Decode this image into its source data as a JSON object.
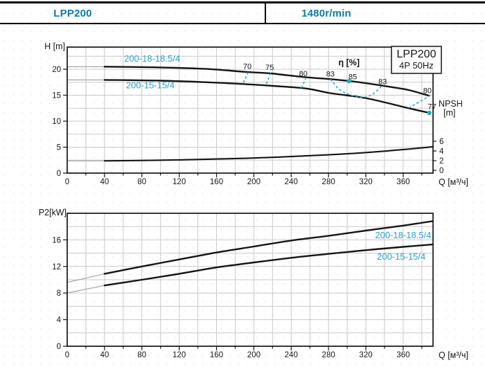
{
  "header": {
    "model": "LPP200",
    "speed": "1480r/min"
  },
  "colors": {
    "header_text": "#0a7ca8",
    "curve_label": "#24a3c8",
    "eta_dash": "#2aa7cb",
    "grid": "#c9c9c9",
    "axis": "#141414",
    "curve": "#141414",
    "ext": "#9e9e9e"
  },
  "chart_data": [
    {
      "type": "line",
      "title": "Head vs flow",
      "badge": [
        "LPP200",
        "4P 50Hz"
      ],
      "xlabel": "Q [м³/ч]",
      "ylabel": "H [m]",
      "xlim": [
        0,
        392
      ],
      "ylim": [
        0,
        24.3
      ],
      "x_grid_step": 20,
      "y_grid_step": 2.5,
      "x_ticks": [
        0,
        40,
        80,
        120,
        160,
        200,
        240,
        280,
        320,
        360
      ],
      "y_ticks": [
        0,
        5,
        10,
        15,
        20
      ],
      "series": [
        {
          "name": "200-18-18.5/4",
          "label_at": [
            91,
            21.9
          ],
          "ext": [
            [
              0,
              20.5
            ],
            [
              40,
              20.5
            ]
          ],
          "points": [
            [
              40,
              20.5
            ],
            [
              100,
              20.35
            ],
            [
              150,
              20.05
            ],
            [
              194,
              19.45
            ],
            [
              218,
              19.2
            ],
            [
              256,
              18.45
            ],
            [
              282,
              18.1
            ],
            [
              303,
              17.72
            ],
            [
              321,
              17.3
            ],
            [
              350,
              16.5
            ],
            [
              366,
              16.0
            ],
            [
              388,
              14.9
            ]
          ]
        },
        {
          "name": "200-15-15/4",
          "label_at": [
            89,
            16.8
          ],
          "ext": [
            [
              0,
              17.95
            ],
            [
              40,
              17.95
            ]
          ],
          "points": [
            [
              40,
              17.95
            ],
            [
              100,
              17.8
            ],
            [
              150,
              17.5
            ],
            [
              190,
              17.15
            ],
            [
              220,
              16.8
            ],
            [
              256,
              16.3
            ],
            [
              282,
              15.4
            ],
            [
              321,
              14.4
            ],
            [
              366,
              12.5
            ],
            [
              388,
              11.6
            ]
          ]
        }
      ],
      "right_axis": {
        "title_lines": [
          "NPSH",
          "[m]"
        ],
        "ticks": [
          0,
          2,
          4,
          6
        ]
      },
      "npsh_series": {
        "ext": [
          [
            0,
            1.95
          ],
          [
            40,
            1.95
          ]
        ],
        "points": [
          [
            40,
            1.95
          ],
          [
            120,
            2.15
          ],
          [
            200,
            2.55
          ],
          [
            280,
            3.2
          ],
          [
            340,
            3.95
          ],
          [
            391,
            4.85
          ]
        ]
      },
      "eta": {
        "title": "η [%]",
        "title_at": [
          302,
          20.75
        ],
        "markers": [
          {
            "label": "70",
            "label_at": [
              193,
              20.1
            ],
            "dash": [
              [
                194,
                19.4
              ],
              [
                188,
                17.2
              ]
            ]
          },
          {
            "label": "75",
            "label_at": [
              217,
              19.85
            ],
            "dash": [
              [
                218,
                19.25
              ],
              [
                213,
                17.0
              ]
            ]
          },
          {
            "label": "80",
            "label_at": [
              253,
              18.7
            ],
            "dash": [
              [
                256,
                18.4
              ],
              [
                251,
                16.35
              ]
            ]
          },
          {
            "label": "83",
            "label_at": [
              282,
              18.6
            ],
            "dash": [
              [
                282,
                18.1
              ],
              [
                291,
                16.2
              ],
              [
                302,
                15.15
              ],
              [
                315,
                14.55
              ],
              [
                327,
                15.15
              ],
              [
                337,
                16.8
              ]
            ]
          },
          {
            "label": "85",
            "label_at": [
              306,
              18.1
            ],
            "dot": [
              302,
              17.7
            ]
          },
          {
            "label": "83",
            "label_at": [
              338,
              17.15
            ]
          },
          {
            "label": "80",
            "label_at": [
              386,
              15.4
            ],
            "dash": [
              [
                366,
                12.55
              ],
              [
                389,
                14.95
              ]
            ]
          },
          {
            "label": "77",
            "label_at": [
              391,
              12.35
            ],
            "dot": [
              388,
              11.6
            ]
          }
        ]
      }
    },
    {
      "type": "line",
      "title": "Power vs flow",
      "xlabel": "Q [м³/ч]",
      "ylabel": "P2[kW]",
      "xlim": [
        0,
        392
      ],
      "ylim": [
        0,
        20
      ],
      "x_grid_step": 20,
      "y_grid_step": 2,
      "x_ticks": [
        0,
        40,
        80,
        120,
        160,
        200,
        240,
        280,
        320,
        360
      ],
      "y_ticks": [
        0,
        4,
        8,
        12,
        16
      ],
      "series": [
        {
          "name": "200-18-18.5/4",
          "label_at": [
            360,
            16.6
          ],
          "ext": [
            [
              0,
              9.6
            ],
            [
              40,
              10.9
            ]
          ],
          "points": [
            [
              40,
              10.9
            ],
            [
              80,
              12.0
            ],
            [
              120,
              13.05
            ],
            [
              160,
              14.1
            ],
            [
              200,
              15.0
            ],
            [
              240,
              15.9
            ],
            [
              280,
              16.6
            ],
            [
              320,
              17.4
            ],
            [
              360,
              18.15
            ],
            [
              391,
              18.8
            ]
          ]
        },
        {
          "name": "200-15-15/4",
          "label_at": [
            358,
            13.4
          ],
          "ext": [
            [
              0,
              8.0
            ],
            [
              40,
              9.15
            ]
          ],
          "points": [
            [
              40,
              9.15
            ],
            [
              80,
              10.0
            ],
            [
              120,
              10.9
            ],
            [
              160,
              11.85
            ],
            [
              200,
              12.6
            ],
            [
              240,
              13.3
            ],
            [
              280,
              13.9
            ],
            [
              320,
              14.45
            ],
            [
              360,
              14.95
            ],
            [
              391,
              15.3
            ]
          ]
        }
      ]
    }
  ]
}
